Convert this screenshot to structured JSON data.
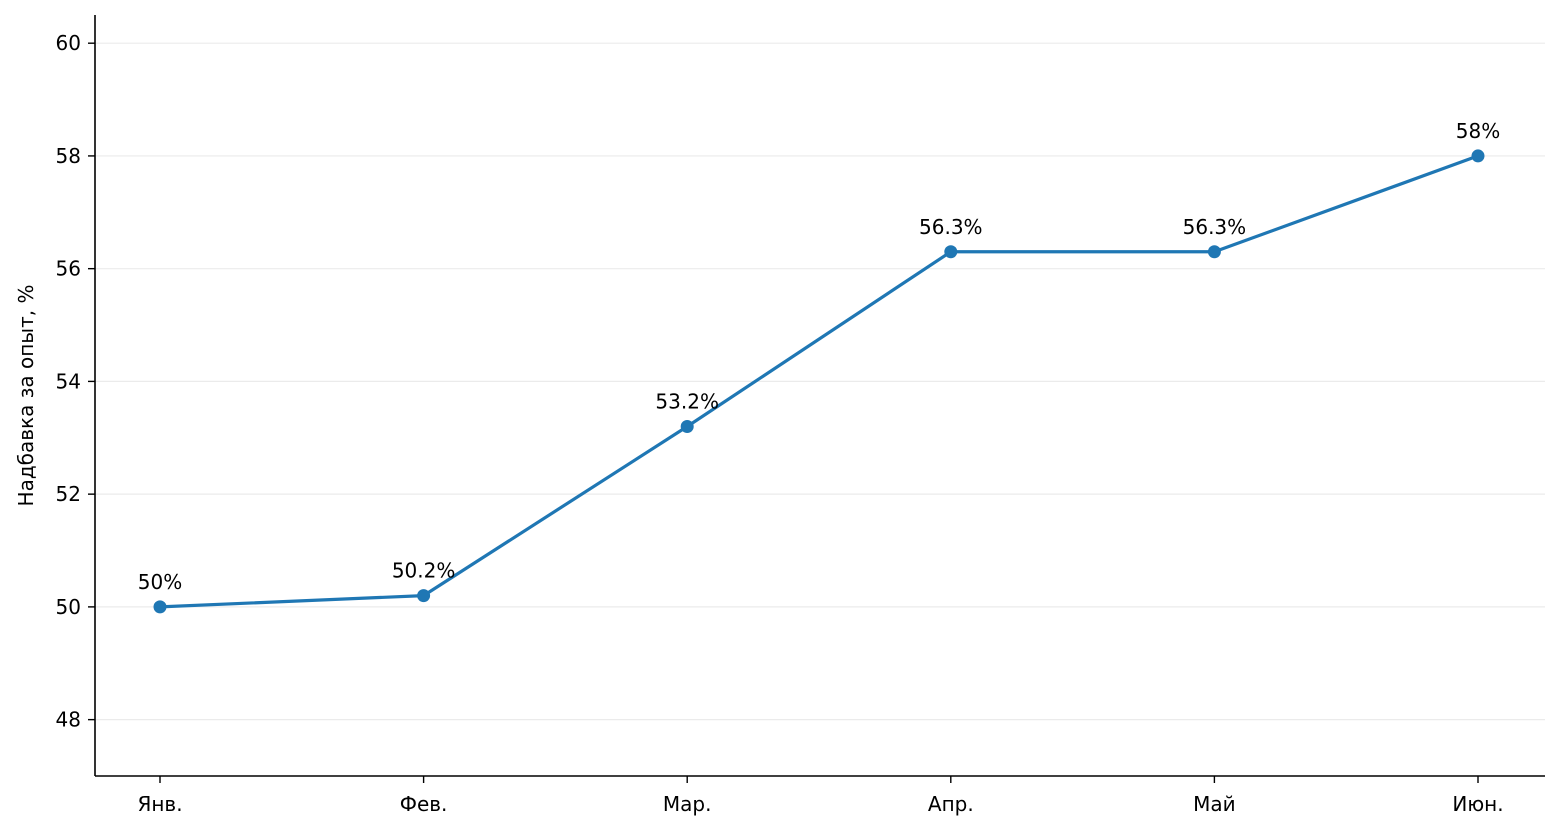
{
  "chart_data": {
    "type": "line",
    "categories": [
      "Янв.",
      "Фев.",
      "Мар.",
      "Апр.",
      "Май",
      "Июн."
    ],
    "series": [
      {
        "values": [
          50,
          50.2,
          53.2,
          56.3,
          56.3,
          58
        ],
        "data_labels": [
          "50%",
          "50.2%",
          "53.2%",
          "56.3%",
          "56.3%",
          "58%"
        ],
        "color": "#1f77b4"
      }
    ],
    "title": "",
    "xlabel": "",
    "ylabel": "Надбавка за опыт, %",
    "ylim": [
      47,
      60.5
    ],
    "yticks": [
      48,
      50,
      52,
      54,
      56,
      58,
      60
    ],
    "ytick_labels": [
      "48",
      "50",
      "52",
      "54",
      "56",
      "58",
      "60"
    ],
    "grid": "horizontal",
    "legend": "none"
  }
}
